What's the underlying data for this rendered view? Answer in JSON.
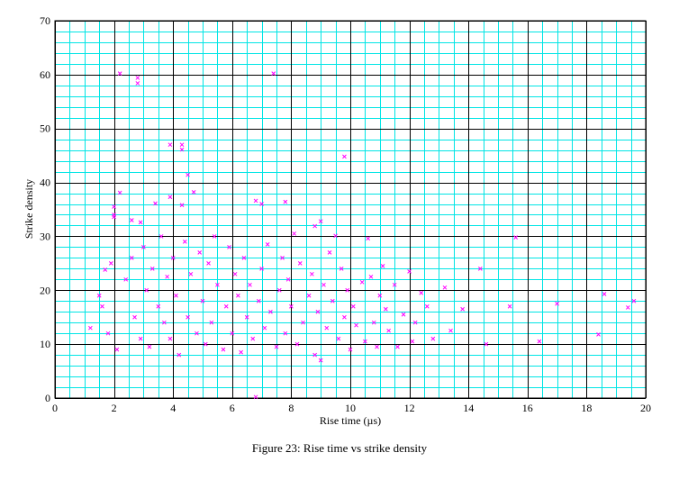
{
  "chart_data": {
    "type": "scatter",
    "title": "",
    "caption": "Figure 23: Rise time vs strike density",
    "xlabel": "Rise time (µs)",
    "ylabel": "Strike density",
    "xlim": [
      0,
      20
    ],
    "ylim": [
      0,
      70
    ],
    "x_ticks": [
      "0",
      "2",
      "4",
      "6",
      "8",
      "10",
      "12",
      "14",
      "16",
      "18",
      "20"
    ],
    "y_ticks": [
      "0",
      "10",
      "20",
      "30",
      "40",
      "50",
      "60",
      "70"
    ],
    "grid": true,
    "minor_grid_step_x": 0.5,
    "minor_grid_step_y": 2,
    "colors": {
      "grid_minor": "#00e5e5",
      "grid_major": "#000000",
      "marker": "#ff00ff"
    },
    "marker": "x",
    "series": [
      {
        "values": [
          [
            2.2,
            60.2
          ],
          [
            2.8,
            59.4
          ],
          [
            2.8,
            58.4
          ],
          [
            7.4,
            60.2
          ],
          [
            3.9,
            47.0
          ],
          [
            4.3,
            47.0
          ],
          [
            4.3,
            46.1
          ],
          [
            9.8,
            44.8
          ],
          [
            4.5,
            41.4
          ],
          [
            3.9,
            37.3
          ],
          [
            4.7,
            38.2
          ],
          [
            2.0,
            35.5
          ],
          [
            2.0,
            34.0
          ],
          [
            2.2,
            38.1
          ],
          [
            6.8,
            36.6
          ],
          [
            7.0,
            36.0
          ],
          [
            7.8,
            36.4
          ],
          [
            4.3,
            35.8
          ],
          [
            3.4,
            36.1
          ],
          [
            2.0,
            33.6
          ],
          [
            2.6,
            33.0
          ],
          [
            2.9,
            32.6
          ],
          [
            9.0,
            32.8
          ],
          [
            8.8,
            31.9
          ],
          [
            9.5,
            30.1
          ],
          [
            10.6,
            29.6
          ],
          [
            15.6,
            29.8
          ],
          [
            1.2,
            13.0
          ],
          [
            1.5,
            19.0
          ],
          [
            1.7,
            23.8
          ],
          [
            1.9,
            25.0
          ],
          [
            1.6,
            17.0
          ],
          [
            1.8,
            12.0
          ],
          [
            2.1,
            9.0
          ],
          [
            2.4,
            22.0
          ],
          [
            2.6,
            26.0
          ],
          [
            2.7,
            15.0
          ],
          [
            2.9,
            11.0
          ],
          [
            3.0,
            28.0
          ],
          [
            3.1,
            20.0
          ],
          [
            3.2,
            9.5
          ],
          [
            3.3,
            24.0
          ],
          [
            3.5,
            17.0
          ],
          [
            3.6,
            30.0
          ],
          [
            3.7,
            14.0
          ],
          [
            3.8,
            22.5
          ],
          [
            3.9,
            11.0
          ],
          [
            4.0,
            26.0
          ],
          [
            4.1,
            19.0
          ],
          [
            4.2,
            8.0
          ],
          [
            4.4,
            29.0
          ],
          [
            4.5,
            15.0
          ],
          [
            4.6,
            23.0
          ],
          [
            4.8,
            12.0
          ],
          [
            4.9,
            27.0
          ],
          [
            5.0,
            18.0
          ],
          [
            5.1,
            10.0
          ],
          [
            5.2,
            25.0
          ],
          [
            5.3,
            14.0
          ],
          [
            5.4,
            30.0
          ],
          [
            5.5,
            21.0
          ],
          [
            5.7,
            9.0
          ],
          [
            5.8,
            17.0
          ],
          [
            5.9,
            28.0
          ],
          [
            6.0,
            12.0
          ],
          [
            6.1,
            23.0
          ],
          [
            6.2,
            19.0
          ],
          [
            6.3,
            8.5
          ],
          [
            6.4,
            26.0
          ],
          [
            6.5,
            15.0
          ],
          [
            6.6,
            21.0
          ],
          [
            6.7,
            11.0
          ],
          [
            6.8,
            0.2
          ],
          [
            6.9,
            18.0
          ],
          [
            7.0,
            24.0
          ],
          [
            7.1,
            13.0
          ],
          [
            7.2,
            28.5
          ],
          [
            7.3,
            16.0
          ],
          [
            7.5,
            9.5
          ],
          [
            7.6,
            20.0
          ],
          [
            7.7,
            26.0
          ],
          [
            7.8,
            12.0
          ],
          [
            7.9,
            22.0
          ],
          [
            8.0,
            17.0
          ],
          [
            8.1,
            30.5
          ],
          [
            8.2,
            10.0
          ],
          [
            8.3,
            25.0
          ],
          [
            8.4,
            14.0
          ],
          [
            8.6,
            19.0
          ],
          [
            8.7,
            23.0
          ],
          [
            8.8,
            8.0
          ],
          [
            8.9,
            16.0
          ],
          [
            9.0,
            7.0
          ],
          [
            9.1,
            21.0
          ],
          [
            9.2,
            13.0
          ],
          [
            9.3,
            27.0
          ],
          [
            9.4,
            18.0
          ],
          [
            9.6,
            11.0
          ],
          [
            9.7,
            24.0
          ],
          [
            9.8,
            15.0
          ],
          [
            9.9,
            20.0
          ],
          [
            10.0,
            9.0
          ],
          [
            10.1,
            17.0
          ],
          [
            10.2,
            13.5
          ],
          [
            10.4,
            21.5
          ],
          [
            10.5,
            10.5
          ],
          [
            10.7,
            22.5
          ],
          [
            10.8,
            14.0
          ],
          [
            10.9,
            9.5
          ],
          [
            11.0,
            19.0
          ],
          [
            11.1,
            24.5
          ],
          [
            11.2,
            16.5
          ],
          [
            11.3,
            12.5
          ],
          [
            11.5,
            21.0
          ],
          [
            11.6,
            9.5
          ],
          [
            11.8,
            15.5
          ],
          [
            12.0,
            23.5
          ],
          [
            12.1,
            10.5
          ],
          [
            12.2,
            14.0
          ],
          [
            12.4,
            19.5
          ],
          [
            12.6,
            17.0
          ],
          [
            12.8,
            11.0
          ],
          [
            13.2,
            20.5
          ],
          [
            13.4,
            12.5
          ],
          [
            13.8,
            16.5
          ],
          [
            14.4,
            24.0
          ],
          [
            14.6,
            10.0
          ],
          [
            15.4,
            17.0
          ],
          [
            16.4,
            10.5
          ],
          [
            17.0,
            17.5
          ],
          [
            18.4,
            11.8
          ],
          [
            18.6,
            19.3
          ],
          [
            19.4,
            16.8
          ],
          [
            19.6,
            18.0
          ]
        ]
      }
    ]
  }
}
